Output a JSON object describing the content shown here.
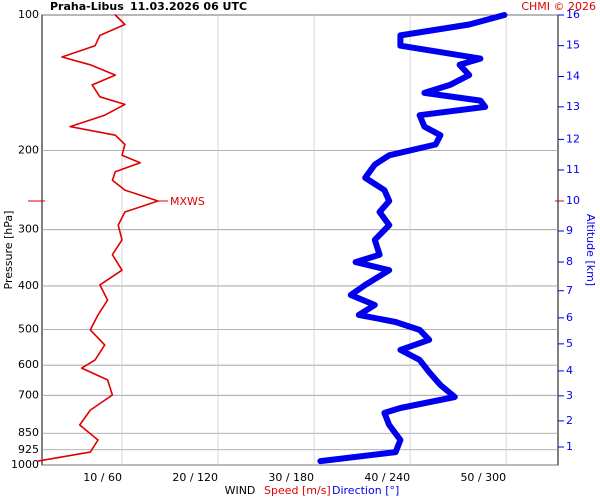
{
  "chart_data": {
    "type": "profile",
    "title": "Praha-Libus",
    "subtitle": "11.03.2026 06 UTC",
    "credit": "CHMI © 2026",
    "ylabel": "Pressure [hPa]",
    "y2label": "Altitude [km]",
    "xlabel": "WIND",
    "ylim": [
      1000,
      100
    ],
    "log_y": true,
    "yticks": [
      100,
      200,
      300,
      400,
      500,
      600,
      700,
      850,
      925,
      1000
    ],
    "xlim": [
      1.67,
      55.4
    ],
    "x2lim": [
      10,
      332.5
    ],
    "xticks": [
      {
        "value": 10,
        "label": "10 / 60"
      },
      {
        "value": 20,
        "label": "20 / 120"
      },
      {
        "value": 30,
        "label": "30 / 180"
      },
      {
        "value": 40,
        "label": "40 / 240"
      },
      {
        "value": 50,
        "label": "50 / 300"
      }
    ],
    "y2ticks": [
      1,
      2,
      3,
      4,
      5,
      6,
      7,
      8,
      9,
      10,
      11,
      12,
      13,
      14,
      15,
      16
    ],
    "y2tick_pressure": [
      912,
      798,
      702,
      618,
      538,
      471,
      410,
      354,
      302,
      259,
      221,
      189,
      160,
      137,
      117,
      100
    ],
    "grid": true,
    "annotation": {
      "label": "MXWS",
      "pressure": 259,
      "speed": 13.75
    },
    "series": [
      {
        "name": "Speed [m/s]",
        "color": "#e00000",
        "axis": "x",
        "pressure": [
          100,
          105,
          111,
          117,
          124,
          129,
          136,
          143,
          152,
          158,
          167,
          177,
          185,
          194,
          205,
          213,
          223,
          233,
          245,
          259,
          274,
          293,
          316,
          341,
          369,
          398,
          430,
          464,
          501,
          541,
          584,
          609,
          647,
          699,
          755,
          815,
          880,
          936,
          980
        ],
        "values": [
          9.3,
          10.3,
          7.7,
          7.2,
          3.75,
          6.7,
          9.3,
          6.9,
          7.7,
          10.3,
          8.2,
          4.6,
          9.3,
          10.3,
          10,
          11.9,
          9.3,
          9,
          10.3,
          13.75,
          10.3,
          9.6,
          10,
          9,
          10,
          7.7,
          8.5,
          7.5,
          6.7,
          8.2,
          7.2,
          5.8,
          8.5,
          9,
          6.7,
          5.6,
          7.5,
          6.7,
          1.25
        ]
      },
      {
        "name": "Direction [°]",
        "color": "#0000ee",
        "axis": "x2",
        "pressure": [
          100,
          105,
          111,
          117,
          125,
          129,
          136,
          143,
          149,
          155,
          160,
          167,
          177,
          185,
          194,
          205,
          215,
          230,
          245,
          259,
          274,
          293,
          316,
          341,
          354,
          369,
          398,
          419,
          441,
          464,
          481,
          501,
          527,
          555,
          584,
          622,
          664,
          706,
          747,
          766,
          815,
          880,
          936,
          980
        ],
        "values": [
          299,
          277,
          234,
          234,
          284,
          271,
          277,
          265,
          249,
          284,
          287,
          246,
          249,
          259,
          256,
          227,
          218,
          212,
          224,
          227,
          221,
          227,
          218,
          221,
          206,
          227,
          212,
          203,
          218,
          208,
          231,
          246,
          252,
          234,
          246,
          252,
          259,
          268,
          234,
          224,
          227,
          234,
          231,
          184
        ]
      }
    ]
  }
}
